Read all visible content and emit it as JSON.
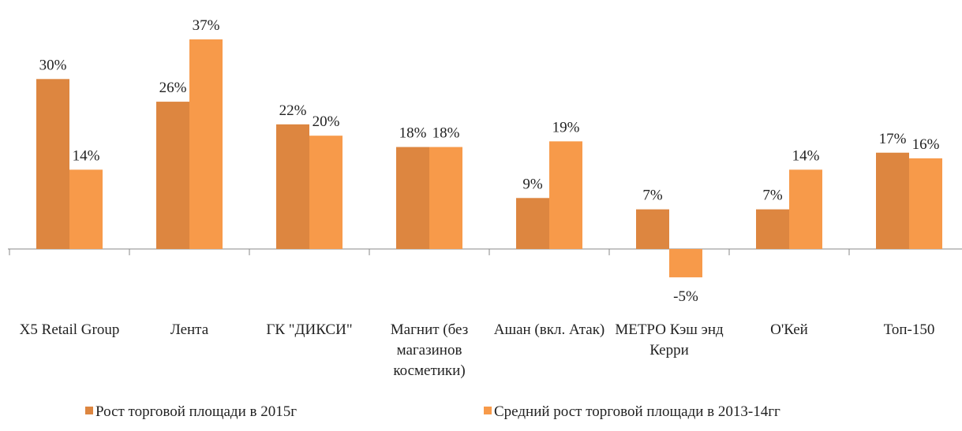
{
  "chart_data": {
    "type": "bar",
    "categories": [
      "X5 Retail Group",
      "Лента",
      "ГК \"ДИКСИ\"",
      "Магнит (без магазинов косметики)",
      "Ашан (вкл. Атак)",
      "МЕТРО Кэш энд Керри",
      "О'Кей",
      "Топ-150"
    ],
    "series": [
      {
        "name": "Рост торговой площади в 2015г",
        "color": "#dd8640",
        "values": [
          30,
          26,
          22,
          18,
          9,
          7,
          7,
          17
        ],
        "value_labels": [
          "30%",
          "26%",
          "22%",
          "18%",
          "9%",
          "7%",
          "7%",
          "17%"
        ]
      },
      {
        "name": "Средний рост торговой площади в 2013-14гг",
        "color": "#f79a4a",
        "values": [
          14,
          37,
          20,
          18,
          19,
          -5,
          14,
          16
        ],
        "value_labels": [
          "14%",
          "37%",
          "20%",
          "18%",
          "19%",
          "-5%",
          "14%",
          "16%"
        ]
      }
    ],
    "legend": "bottom"
  }
}
